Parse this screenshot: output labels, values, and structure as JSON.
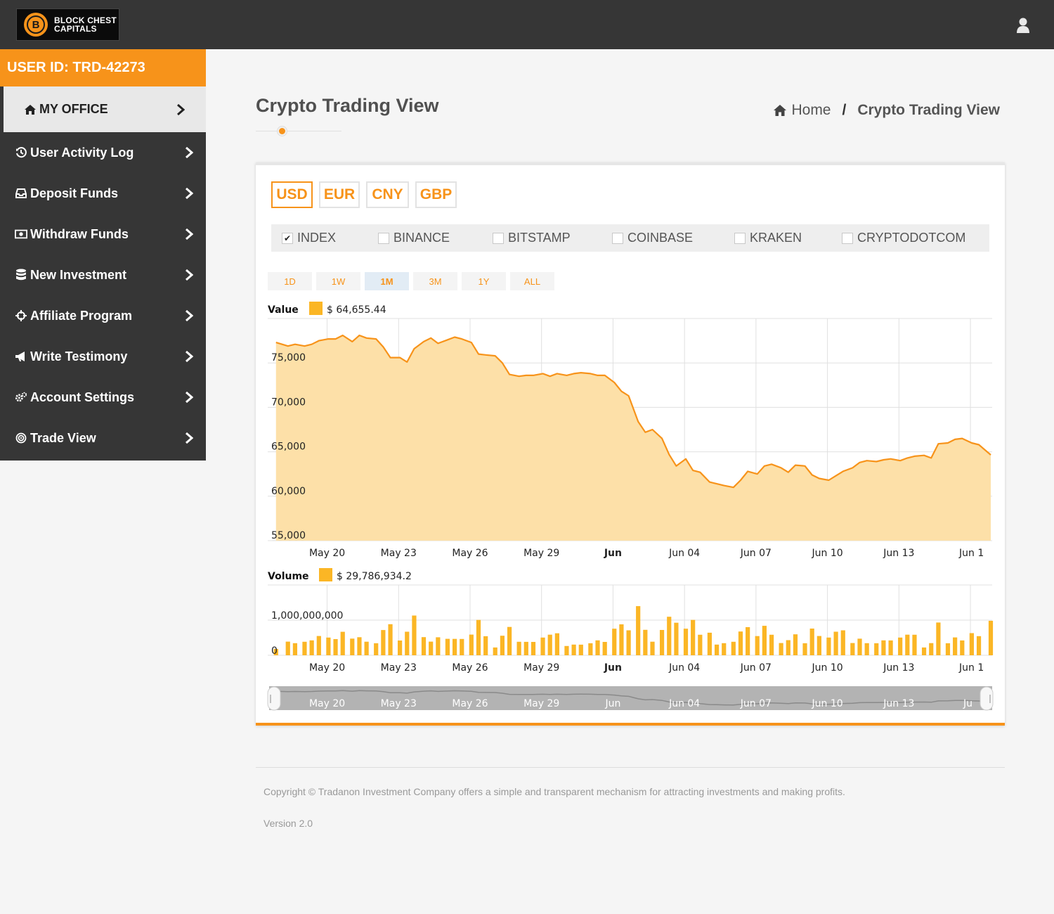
{
  "brand": {
    "name_line1": "BLOCK CHEST",
    "name_line2": "CAPITALS",
    "coin_glyph": "B"
  },
  "header": {
    "user_icon": "user-icon"
  },
  "sidebar": {
    "user_id": "USER ID: TRD-42273",
    "items": [
      {
        "label": "MY OFFICE",
        "icon": "home-icon",
        "active": true
      },
      {
        "label": "User Activity Log",
        "icon": "history-icon"
      },
      {
        "label": "Deposit Funds",
        "icon": "inbox-icon"
      },
      {
        "label": "Withdraw Funds",
        "icon": "money-icon"
      },
      {
        "label": "New Investment",
        "icon": "database-icon"
      },
      {
        "label": "Affiliate Program",
        "icon": "crosshairs-icon"
      },
      {
        "label": "Write Testimony",
        "icon": "bullhorn-icon"
      },
      {
        "label": "Account Settings",
        "icon": "cogs-icon"
      },
      {
        "label": "Trade View",
        "icon": "bullseye-icon"
      }
    ]
  },
  "page": {
    "title": "Crypto Trading View",
    "breadcrumb": {
      "home": "Home",
      "separator": "/",
      "current": "Crypto Trading View"
    }
  },
  "currencies": [
    {
      "label": "USD",
      "active": true
    },
    {
      "label": "EUR",
      "active": false
    },
    {
      "label": "CNY",
      "active": false
    },
    {
      "label": "GBP",
      "active": false
    }
  ],
  "exchanges": [
    {
      "label": "INDEX",
      "checked": true
    },
    {
      "label": "BINANCE",
      "checked": false
    },
    {
      "label": "BITSTAMP",
      "checked": false
    },
    {
      "label": "COINBASE",
      "checked": false
    },
    {
      "label": "KRAKEN",
      "checked": false
    },
    {
      "label": "CRYPTODOTCOM",
      "checked": false
    }
  ],
  "ranges": [
    {
      "label": "1D",
      "active": false
    },
    {
      "label": "1W",
      "active": false
    },
    {
      "label": "1M",
      "active": true
    },
    {
      "label": "3M",
      "active": false
    },
    {
      "label": "1Y",
      "active": false
    },
    {
      "label": "ALL",
      "active": false
    }
  ],
  "colors": {
    "accent": "#f7931a",
    "area_fill": "#fde0a8",
    "volume_bar": "#fbb625",
    "dark": "#363636"
  },
  "chart_data": {
    "type": "area",
    "value_panel": {
      "label": "Value",
      "legend_value": "$ 64,655.44",
      "ylim": [
        55000,
        80000
      ],
      "yticks": [
        "75,000",
        "70,000",
        "65,000",
        "60,000",
        "55,000"
      ]
    },
    "volume_panel": {
      "label": "Volume",
      "legend_value": "$ 29,786,934.2",
      "ylim": [
        0,
        2000000000
      ],
      "yticks": [
        "1,000,000,000",
        "0"
      ]
    },
    "x_ticks": [
      {
        "label": "May 20",
        "bold": false
      },
      {
        "label": "May 23",
        "bold": false
      },
      {
        "label": "May 26",
        "bold": false
      },
      {
        "label": "May 29",
        "bold": false
      },
      {
        "label": "Jun",
        "bold": true
      },
      {
        "label": "Jun 04",
        "bold": false
      },
      {
        "label": "Jun 07",
        "bold": false
      },
      {
        "label": "Jun 10",
        "bold": false
      },
      {
        "label": "Jun 13",
        "bold": false
      },
      {
        "label": "Jun 1",
        "bold": false
      }
    ],
    "navigator_ticks": [
      "May 20",
      "May 23",
      "May 26",
      "May 29",
      "Jun",
      "Jun 04",
      "Jun 07",
      "Jun 10",
      "Jun 13",
      "Ju"
    ],
    "x_days": [
      17.5,
      18,
      18.3,
      18.7,
      19,
      19.3,
      19.7,
      20,
      20.3,
      20.7,
      21,
      21.3,
      21.7,
      22,
      22.3,
      22.7,
      23,
      23.3,
      23.7,
      24,
      24.3,
      24.7,
      25,
      25.3,
      25.7,
      26,
      26.3,
      26.7,
      27,
      27.3,
      27.7,
      28,
      28.3,
      28.7,
      29,
      29.3,
      29.7,
      30,
      30.3,
      30.7,
      31,
      31.3,
      31.7,
      32,
      32.3,
      32.7,
      33,
      33.3,
      33.7,
      34,
      34.3,
      34.7,
      35,
      35.3,
      35.7,
      36,
      36.3,
      36.7,
      37,
      37.3,
      37.7,
      38,
      38.3,
      38.7,
      39,
      39.3,
      39.7,
      40,
      40.3,
      40.7,
      41,
      41.3,
      41.7,
      42,
      42.3,
      42.7,
      43,
      43.3,
      43.7,
      44,
      44.3,
      44.7,
      45,
      45.3,
      45.7,
      46,
      46.3,
      46.7,
      47,
      47.5
    ],
    "values": [
      77300,
      76900,
      77100,
      76900,
      77100,
      77500,
      77700,
      77700,
      78100,
      77400,
      78100,
      77800,
      77700,
      76800,
      75600,
      75600,
      75100,
      76600,
      77400,
      77800,
      77200,
      77600,
      77900,
      77700,
      77300,
      76000,
      75900,
      75800,
      75000,
      73700,
      73500,
      73600,
      73600,
      73800,
      73500,
      73800,
      73600,
      73800,
      73900,
      73800,
      73600,
      73600,
      72800,
      71800,
      71300,
      68400,
      67200,
      67500,
      66500,
      64700,
      63400,
      64200,
      62900,
      62700,
      61600,
      61400,
      61200,
      61000,
      61800,
      62800,
      62500,
      63400,
      63600,
      63200,
      62700,
      63500,
      63400,
      62400,
      62000,
      61800,
      62300,
      62800,
      63200,
      63800,
      64000,
      63900,
      64100,
      64200,
      64000,
      64300,
      64500,
      64600,
      64300,
      65900,
      66000,
      66400,
      66500,
      66000,
      65800,
      64655
    ]
  },
  "footer": {
    "copyright": "Copyright © Tradanon Investment Company offers a simple and transparent mechanism for attracting investments and making profits.",
    "version": "Version 2.0"
  }
}
